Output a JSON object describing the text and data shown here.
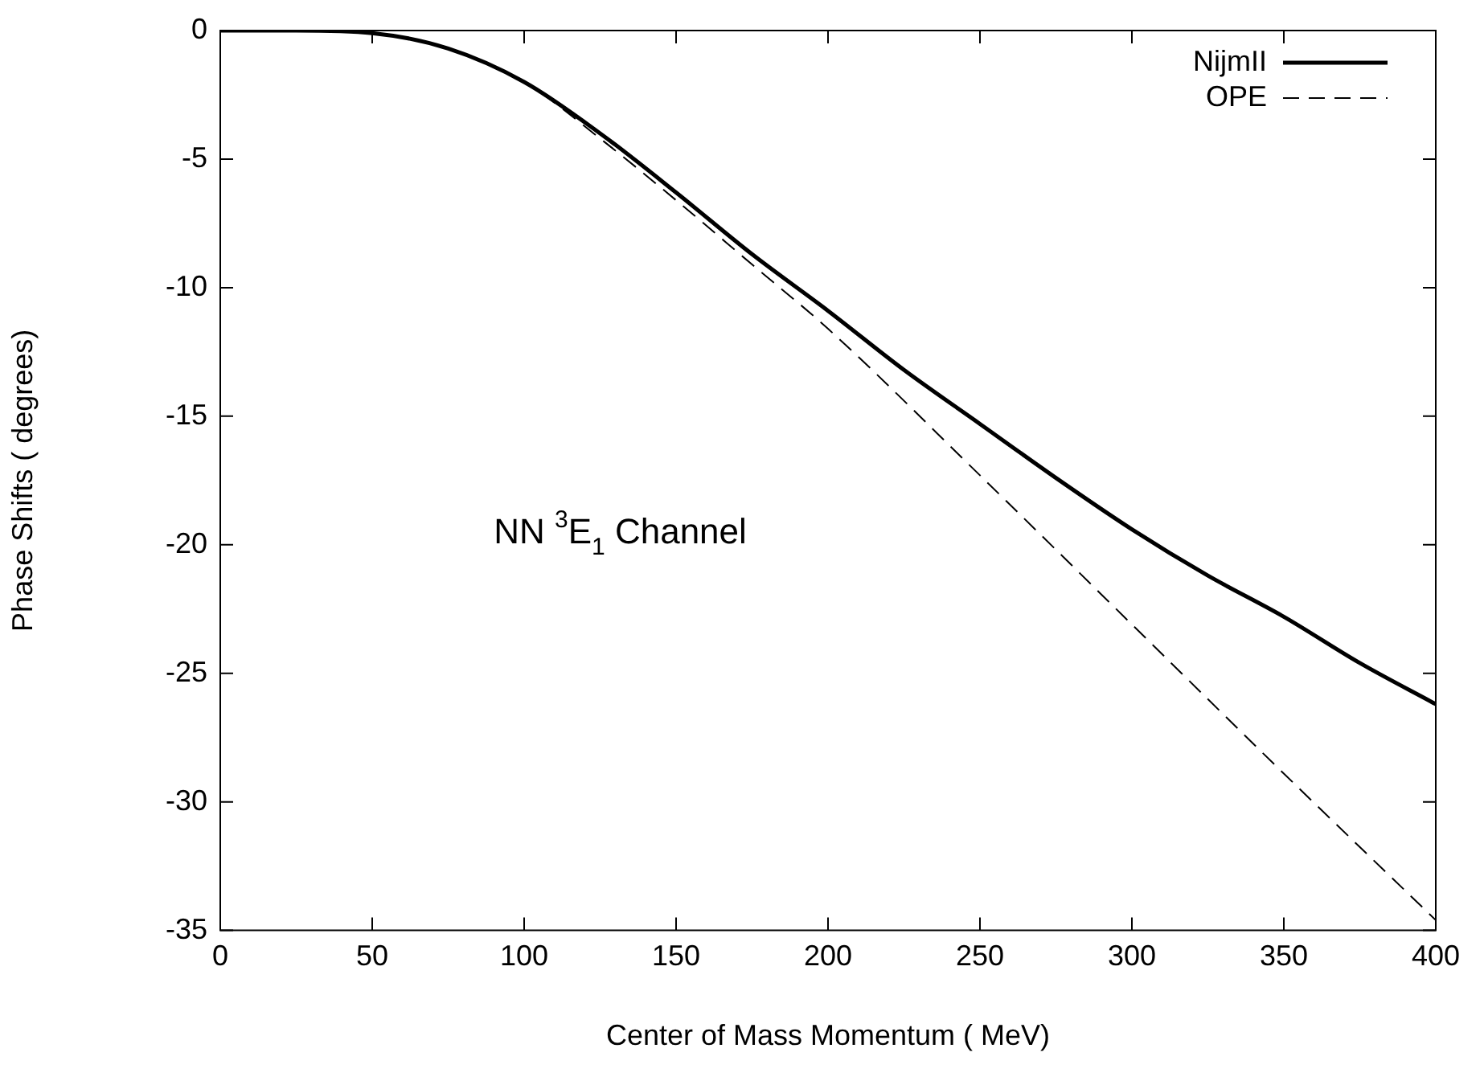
{
  "chart_data": {
    "type": "line",
    "xlabel": "Center of Mass Momentum ( MeV)",
    "ylabel": "Phase Shifts ( degrees)",
    "annotations": [
      "NN $^{3}$E$_{1}$ Channel"
    ],
    "xlim": [
      0,
      400
    ],
    "xticks": [
      0,
      50,
      100,
      150,
      200,
      250,
      300,
      350,
      400
    ],
    "ylim": [
      -35,
      0
    ],
    "yticks": [
      -35,
      -30,
      -25,
      -20,
      -15,
      -10,
      -5,
      0
    ],
    "grid": false,
    "legend": "top right",
    "marker": "none",
    "series": [
      {
        "name": "NijmII",
        "color": "#000000",
        "line_style": "solid",
        "x": [
          0,
          25,
          50,
          75,
          100,
          125,
          150,
          175,
          200,
          225,
          250,
          275,
          300,
          325,
          350,
          375,
          400
        ],
        "values": [
          0,
          0,
          -0.1,
          -0.7,
          -2.0,
          -4.0,
          -6.3,
          -8.7,
          -10.9,
          -13.2,
          -15.3,
          -17.4,
          -19.4,
          -21.2,
          -22.8,
          -24.6,
          -26.2
        ]
      },
      {
        "name": "OPE",
        "color": "#000000",
        "line_style": "dashed",
        "x": [
          0,
          25,
          50,
          75,
          100,
          125,
          150,
          175,
          200,
          250,
          300,
          350,
          400
        ],
        "values": [
          0,
          0,
          -0.1,
          -0.7,
          -2.0,
          -4.2,
          -6.6,
          -9.1,
          -11.6,
          -17.3,
          -23.1,
          -28.9,
          -34.6
        ]
      }
    ]
  }
}
